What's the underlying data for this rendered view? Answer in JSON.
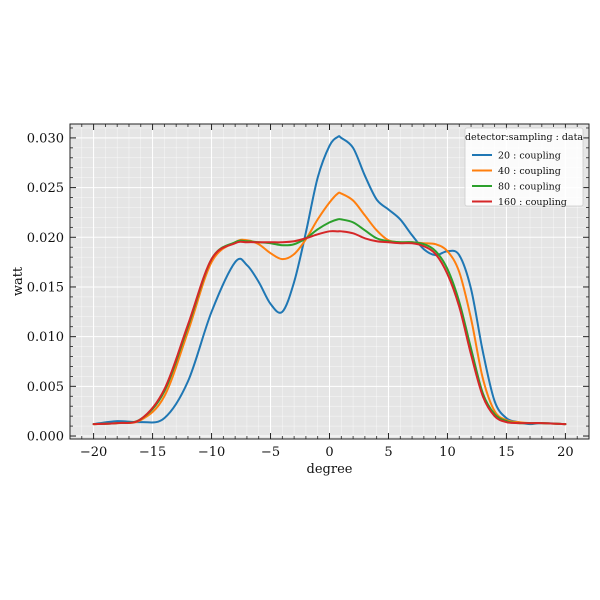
{
  "chart_data": {
    "type": "line",
    "xlabel": "degree",
    "ylabel": "watt",
    "xlim": [
      -22,
      22
    ],
    "ylim": [
      -0.0003,
      0.0314
    ],
    "xticks": [
      -20,
      -15,
      -10,
      -5,
      0,
      5,
      10,
      15,
      20
    ],
    "xtick_labels": [
      "−20",
      "−15",
      "−10",
      "−5",
      "0",
      "5",
      "10",
      "15",
      "20"
    ],
    "yticks": [
      0.0,
      0.005,
      0.01,
      0.015,
      0.02,
      0.025,
      0.03
    ],
    "ytick_labels": [
      "0.000",
      "0.005",
      "0.010",
      "0.015",
      "0.020",
      "0.025",
      "0.030"
    ],
    "grid": true,
    "legend": {
      "title": "detector:sampling : data",
      "placement": "top-right"
    },
    "x": [
      -20,
      -18,
      -16,
      -14,
      -12,
      -10,
      -8,
      -7,
      -6,
      -5,
      -4,
      -3,
      -2,
      -1,
      0,
      0.7,
      1,
      2,
      3,
      4,
      5,
      6,
      7,
      8,
      9,
      10,
      11,
      12,
      13,
      14,
      15,
      16,
      17,
      18,
      20
    ],
    "series": [
      {
        "name": "20 : coupling",
        "color": "#1f77b4",
        "values": [
          0.0012,
          0.0015,
          0.0014,
          0.0018,
          0.0055,
          0.0125,
          0.0175,
          0.0172,
          0.0155,
          0.0133,
          0.0125,
          0.0155,
          0.0205,
          0.026,
          0.0292,
          0.0301,
          0.03,
          0.029,
          0.0262,
          0.0238,
          0.0228,
          0.0218,
          0.0202,
          0.0188,
          0.0182,
          0.0186,
          0.0182,
          0.0148,
          0.0085,
          0.0035,
          0.0018,
          0.0014,
          0.0012,
          0.0013,
          0.0012
        ]
      },
      {
        "name": "40 : coupling",
        "color": "#ff7f0e",
        "values": [
          0.0012,
          0.0013,
          0.0016,
          0.004,
          0.0105,
          0.0175,
          0.0195,
          0.0197,
          0.0193,
          0.0184,
          0.0178,
          0.0183,
          0.0198,
          0.0218,
          0.0235,
          0.0244,
          0.0244,
          0.0237,
          0.0222,
          0.0207,
          0.0197,
          0.0195,
          0.0195,
          0.0194,
          0.0193,
          0.0186,
          0.0165,
          0.0118,
          0.0058,
          0.0025,
          0.0016,
          0.0014,
          0.0013,
          0.0013,
          0.0012
        ]
      },
      {
        "name": "80 : coupling",
        "color": "#2ca02c",
        "values": [
          0.0012,
          0.0013,
          0.0017,
          0.0045,
          0.011,
          0.0178,
          0.0195,
          0.0196,
          0.0195,
          0.0194,
          0.0192,
          0.0193,
          0.0199,
          0.0208,
          0.0215,
          0.0218,
          0.0218,
          0.0215,
          0.0207,
          0.0199,
          0.0196,
          0.0195,
          0.0195,
          0.0193,
          0.0186,
          0.0168,
          0.0135,
          0.0088,
          0.0043,
          0.0022,
          0.0015,
          0.0013,
          0.0013,
          0.0013,
          0.0012
        ]
      },
      {
        "name": "160 : coupling",
        "color": "#d62728",
        "values": [
          0.0012,
          0.0013,
          0.0017,
          0.0047,
          0.0112,
          0.0178,
          0.0194,
          0.0195,
          0.0195,
          0.0195,
          0.0195,
          0.0196,
          0.0199,
          0.0203,
          0.0206,
          0.0206,
          0.0206,
          0.0204,
          0.0199,
          0.0196,
          0.0195,
          0.0194,
          0.0194,
          0.0191,
          0.0183,
          0.0163,
          0.013,
          0.0082,
          0.004,
          0.002,
          0.0014,
          0.0013,
          0.0013,
          0.0013,
          0.0012
        ]
      }
    ]
  }
}
